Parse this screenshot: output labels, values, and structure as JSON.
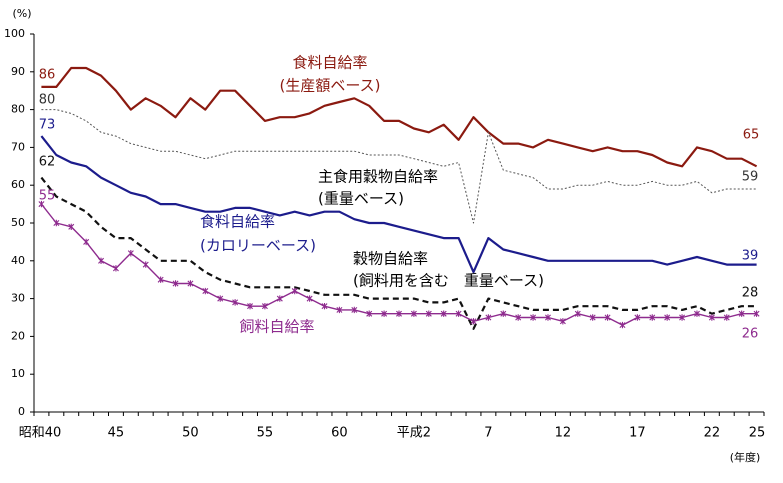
{
  "chart_data": {
    "type": "line",
    "y_unit": "(%)",
    "x_unit": "(年度)",
    "ylim": [
      0,
      100
    ],
    "y_ticks": [
      0,
      10,
      20,
      30,
      40,
      50,
      60,
      70,
      80,
      90,
      100
    ],
    "x_tick_labels": [
      "昭和40",
      "45",
      "50",
      "55",
      "60",
      "平成2",
      "7",
      "12",
      "17",
      "22",
      "25"
    ],
    "grid": false,
    "colors": {
      "production_value": "#8b1a10",
      "staple_grain": "#555555",
      "calorie": "#1c1c8c",
      "grain": "#111111",
      "feed": "#8e2b8e"
    },
    "series": [
      {
        "key": "production_value",
        "name": "食料自給率\n(生産額ベース)",
        "start_label": "86",
        "end_label": "65",
        "values": [
          86,
          86,
          91,
          91,
          89,
          85,
          80,
          83,
          81,
          78,
          83,
          80,
          85,
          85,
          81,
          77,
          78,
          78,
          79,
          81,
          82,
          83,
          81,
          77,
          77,
          75,
          74,
          76,
          72,
          78,
          74,
          71,
          71,
          70,
          72,
          71,
          70,
          69,
          70,
          69,
          69,
          68,
          66,
          65,
          70,
          69,
          67,
          67,
          65
        ]
      },
      {
        "key": "staple_grain",
        "name": "主食用穀物自給率\n(重量ベース)",
        "start_label": "80",
        "end_label": "59",
        "values": [
          80,
          80,
          79,
          77,
          74,
          73,
          71,
          70,
          69,
          69,
          68,
          67,
          68,
          69,
          69,
          69,
          69,
          69,
          69,
          69,
          69,
          69,
          68,
          68,
          68,
          67,
          66,
          65,
          66,
          50,
          74,
          64,
          63,
          62,
          59,
          59,
          60,
          60,
          61,
          60,
          60,
          61,
          60,
          60,
          61,
          58,
          59,
          59,
          59
        ]
      },
      {
        "key": "calorie",
        "name": "食料自給率\n(カロリーベース)",
        "start_label": "73",
        "end_label": "39",
        "values": [
          73,
          68,
          66,
          65,
          62,
          60,
          58,
          57,
          55,
          55,
          54,
          53,
          53,
          54,
          54,
          53,
          52,
          53,
          52,
          53,
          53,
          51,
          50,
          50,
          49,
          48,
          47,
          46,
          46,
          37,
          46,
          43,
          42,
          41,
          40,
          40,
          40,
          40,
          40,
          40,
          40,
          40,
          39,
          40,
          41,
          40,
          39,
          39,
          39
        ]
      },
      {
        "key": "grain",
        "name": "穀物自給率\n(飼料用を含む　重量ベース)",
        "start_label": "62",
        "end_label": "28",
        "values": [
          62,
          57,
          55,
          53,
          49,
          46,
          46,
          43,
          40,
          40,
          40,
          37,
          35,
          34,
          33,
          33,
          33,
          33,
          32,
          31,
          31,
          31,
          30,
          30,
          30,
          30,
          29,
          29,
          30,
          22,
          30,
          29,
          28,
          27,
          27,
          27,
          28,
          28,
          28,
          27,
          27,
          28,
          28,
          27,
          28,
          26,
          27,
          28,
          28
        ]
      },
      {
        "key": "feed",
        "name": "飼料自給率",
        "start_label": "55",
        "end_label": "26",
        "values": [
          55,
          50,
          49,
          45,
          40,
          38,
          42,
          39,
          35,
          34,
          34,
          32,
          30,
          29,
          28,
          28,
          30,
          32,
          30,
          28,
          27,
          27,
          26,
          26,
          26,
          26,
          26,
          26,
          26,
          24,
          25,
          26,
          25,
          25,
          25,
          24,
          26,
          25,
          25,
          23,
          25,
          25,
          25,
          25,
          26,
          25,
          25,
          26,
          26
        ]
      }
    ]
  }
}
